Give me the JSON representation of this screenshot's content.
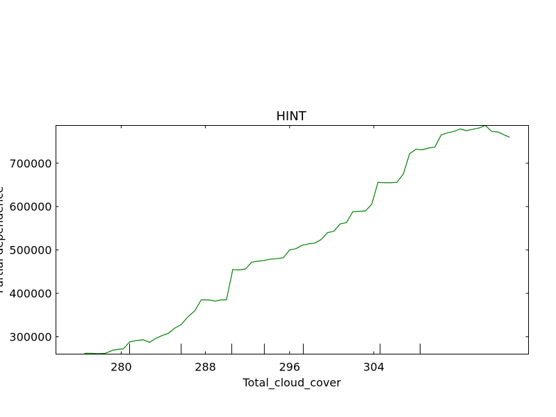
{
  "chart_data": {
    "type": "line",
    "title": "HINT",
    "xlabel": "Total_cloud_cover",
    "ylabel": "Partial dependence",
    "xlim": [
      273.8,
      318.7
    ],
    "ylim": [
      260000,
      787000
    ],
    "x_ticks": [
      280,
      288,
      296,
      304
    ],
    "x_tick_labels": [
      "280",
      "288",
      "296",
      "304"
    ],
    "y_ticks": [
      300000,
      400000,
      500000,
      600000,
      700000
    ],
    "y_tick_labels": [
      "300000",
      "400000",
      "500000",
      "600000",
      "700000"
    ],
    "decile_marks": [
      280.8,
      285.7,
      290.5,
      293.6,
      297.3,
      304.6,
      308.4
    ],
    "grid": false,
    "series": [
      {
        "color": "#008000",
        "x": [
          276.5,
          277.2,
          277.8,
          278.5,
          279.2,
          279.7,
          280.2,
          280.8,
          281.4,
          282.1,
          282.7,
          283.2,
          283.9,
          284.5,
          285.1,
          285.7,
          286.3,
          287.0,
          287.6,
          288.3,
          288.9,
          289.5,
          290.0,
          290.6,
          291.2,
          291.8,
          292.4,
          293.0,
          293.6,
          294.2,
          294.8,
          295.4,
          296.0,
          296.6,
          297.2,
          297.8,
          298.4,
          299.0,
          299.6,
          300.2,
          300.8,
          301.4,
          302.0,
          302.6,
          303.2,
          303.8,
          304.4,
          305.0,
          305.6,
          306.2,
          306.8,
          307.4,
          308.0,
          308.6,
          309.2,
          309.8,
          310.4,
          311.0,
          311.6,
          312.2,
          312.8,
          313.4,
          314.0,
          314.6,
          315.2,
          315.8,
          316.4,
          316.9
        ],
        "y": [
          262000,
          262000,
          261000,
          262000,
          269000,
          271000,
          272000,
          288000,
          291000,
          293000,
          287000,
          295000,
          303000,
          308000,
          320000,
          328000,
          345000,
          360000,
          385000,
          385000,
          382000,
          385000,
          385000,
          455000,
          454000,
          456000,
          472000,
          474000,
          476000,
          479000,
          480000,
          482000,
          500000,
          503000,
          511000,
          514000,
          516000,
          524000,
          540000,
          543000,
          560000,
          563000,
          588000,
          589000,
          590000,
          605000,
          656000,
          655000,
          655000,
          656000,
          675000,
          722000,
          732000,
          731000,
          735000,
          737000,
          765000,
          770000,
          773000,
          779000,
          775000,
          778000,
          781000,
          787000,
          773000,
          772000,
          765000,
          760000
        ]
      }
    ]
  }
}
